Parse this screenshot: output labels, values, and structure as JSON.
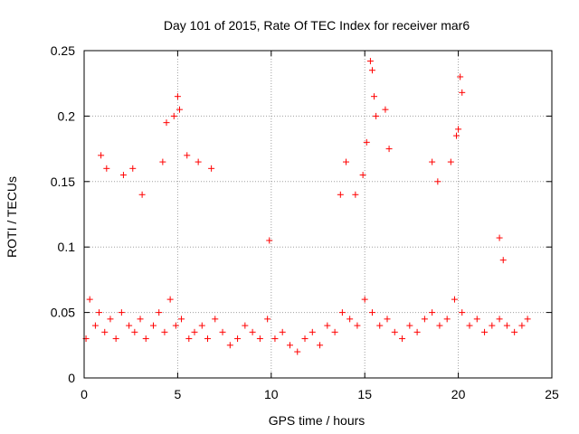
{
  "chart_data": {
    "type": "scatter",
    "title": "Day 101 of 2015, Rate Of TEC Index for receiver mar6",
    "xlabel": "GPS time / hours",
    "ylabel": "ROTI / TECUs",
    "xlim": [
      0,
      25
    ],
    "ylim": [
      0,
      0.25
    ],
    "xticks": [
      0,
      5,
      10,
      15,
      20,
      25
    ],
    "xtick_labels": [
      "0",
      "5",
      "10",
      "15",
      "20",
      "25"
    ],
    "yticks": [
      0,
      0.05,
      0.1,
      0.15,
      0.2,
      0.25
    ],
    "ytick_labels": [
      "0",
      "0.05",
      "0.1",
      "0.15",
      "0.2",
      "0.25"
    ],
    "grid": true,
    "marker": "+",
    "marker_color": "#ff0000",
    "series": [
      {
        "name": "ROTI",
        "x": [
          0.1,
          0.3,
          0.6,
          0.8,
          1.1,
          1.4,
          1.7,
          2.0,
          2.4,
          2.7,
          3.0,
          3.3,
          3.7,
          4.0,
          4.3,
          4.6,
          4.9,
          5.2,
          5.6,
          5.9,
          6.3,
          6.6,
          7.0,
          7.4,
          7.8,
          8.2,
          8.6,
          9.0,
          9.4,
          9.8,
          10.2,
          10.6,
          11.0,
          11.4,
          11.8,
          12.2,
          12.6,
          13.0,
          13.4,
          13.8,
          14.2,
          14.6,
          15.0,
          15.4,
          15.8,
          16.2,
          16.6,
          17.0,
          17.4,
          17.8,
          18.2,
          18.6,
          19.0,
          19.4,
          19.8,
          20.2,
          20.6,
          21.0,
          21.4,
          21.8,
          22.2,
          22.6,
          23.0,
          23.4,
          23.7,
          0.9,
          1.2,
          2.1,
          2.6,
          3.1,
          4.2,
          4.4,
          4.8,
          5.0,
          5.1,
          5.5,
          6.1,
          6.8,
          9.9,
          13.7,
          14.0,
          14.5,
          14.9,
          15.1,
          15.3,
          15.4,
          15.5,
          15.6,
          16.1,
          16.3,
          18.6,
          18.9,
          19.6,
          19.9,
          20.0,
          20.1,
          20.2,
          22.2,
          22.4
        ],
        "y": [
          0.03,
          0.06,
          0.04,
          0.05,
          0.035,
          0.045,
          0.03,
          0.05,
          0.04,
          0.035,
          0.045,
          0.03,
          0.04,
          0.05,
          0.035,
          0.06,
          0.04,
          0.045,
          0.03,
          0.035,
          0.04,
          0.03,
          0.045,
          0.035,
          0.025,
          0.03,
          0.04,
          0.035,
          0.03,
          0.045,
          0.03,
          0.035,
          0.025,
          0.02,
          0.03,
          0.035,
          0.025,
          0.04,
          0.035,
          0.05,
          0.045,
          0.04,
          0.06,
          0.05,
          0.04,
          0.045,
          0.035,
          0.03,
          0.04,
          0.035,
          0.045,
          0.05,
          0.04,
          0.045,
          0.06,
          0.05,
          0.04,
          0.045,
          0.035,
          0.04,
          0.045,
          0.04,
          0.035,
          0.04,
          0.045,
          0.17,
          0.16,
          0.155,
          0.16,
          0.14,
          0.165,
          0.195,
          0.2,
          0.215,
          0.205,
          0.17,
          0.165,
          0.16,
          0.105,
          0.14,
          0.165,
          0.14,
          0.155,
          0.18,
          0.242,
          0.235,
          0.215,
          0.2,
          0.205,
          0.175,
          0.165,
          0.15,
          0.165,
          0.185,
          0.19,
          0.23,
          0.218,
          0.107,
          0.09
        ]
      }
    ]
  }
}
